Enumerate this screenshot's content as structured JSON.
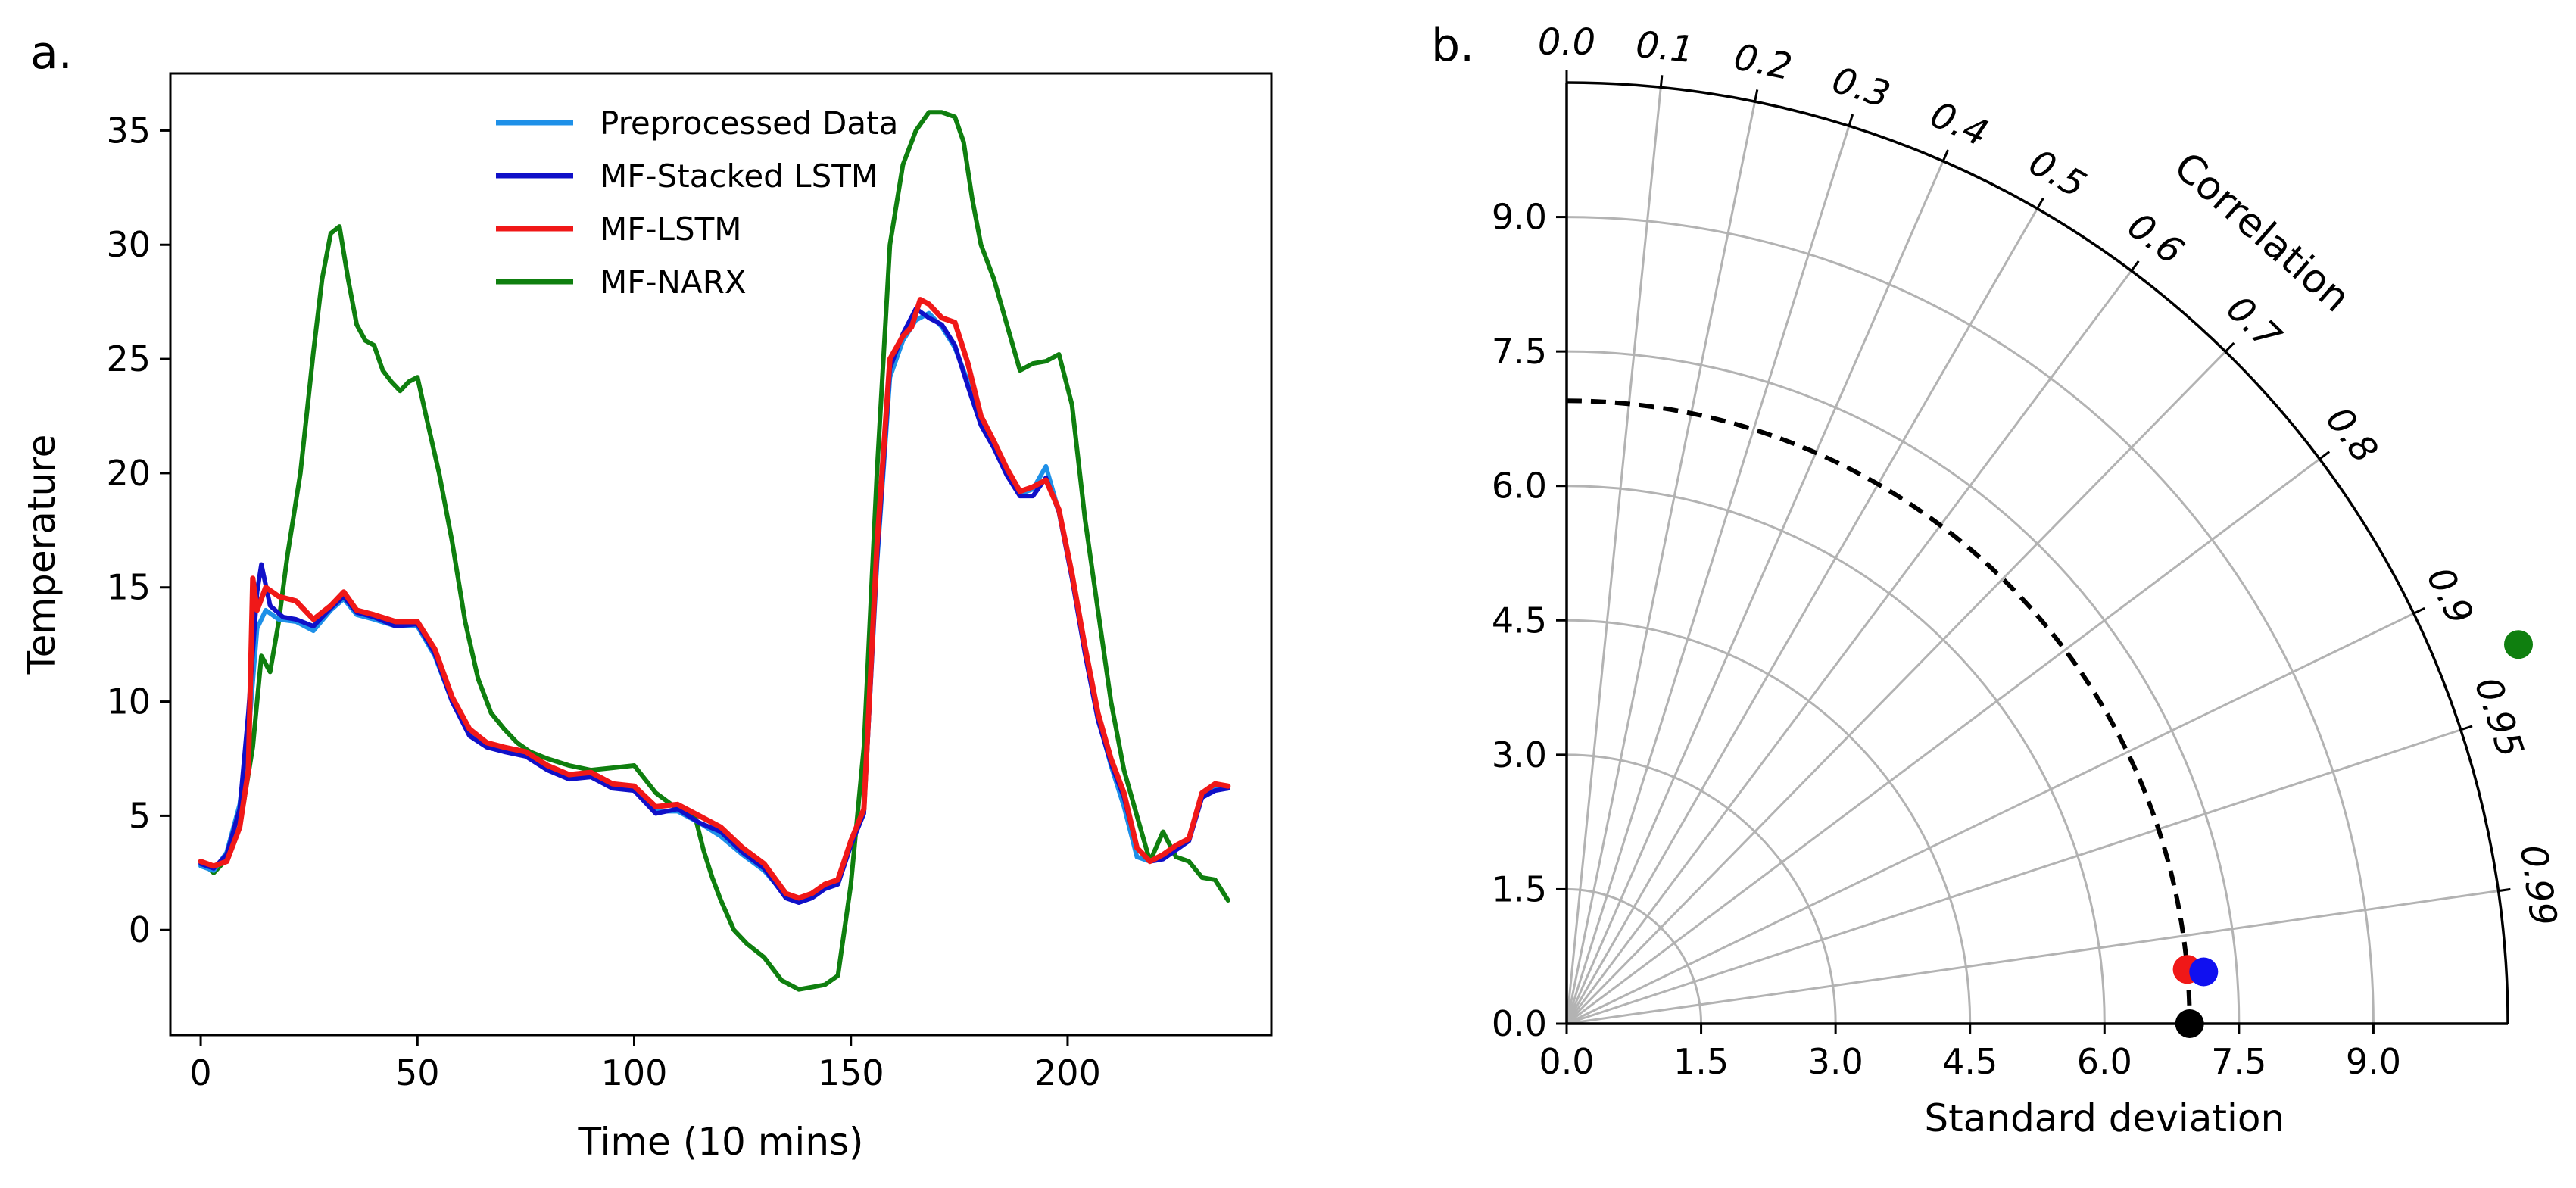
{
  "chart_data": [
    {
      "panel_label": "a.",
      "type": "line",
      "title": "",
      "xlabel": "Time (10 mins)",
      "ylabel": "Temperature",
      "xlim": [
        -7,
        247
      ],
      "ylim": [
        -4.6,
        37.5
      ],
      "xticks": [
        0,
        50,
        100,
        150,
        200
      ],
      "xtick_labels": [
        "0",
        "50",
        "100",
        "150",
        "200"
      ],
      "yticks": [
        0,
        5,
        10,
        15,
        20,
        25,
        30,
        35
      ],
      "ytick_labels": [
        "0",
        "5",
        "10",
        "15",
        "20",
        "25",
        "30",
        "35"
      ],
      "grid": false,
      "legend_position": "top-center",
      "series": [
        {
          "name": "Preprocessed Data",
          "color": "#1e90e8",
          "x": [
            0,
            3,
            6,
            9,
            11,
            13,
            15,
            18,
            22,
            26,
            30,
            33,
            36,
            40,
            45,
            50,
            54,
            58,
            62,
            66,
            70,
            75,
            80,
            85,
            90,
            95,
            100,
            105,
            110,
            115,
            120,
            125,
            130,
            135,
            138,
            141,
            144,
            147,
            150,
            153,
            156,
            159,
            162,
            165,
            168,
            171,
            174,
            177,
            180,
            183,
            186,
            189,
            192,
            195,
            198,
            201,
            204,
            207,
            210,
            213,
            216,
            219,
            222,
            225,
            228,
            231,
            234,
            237
          ],
          "values": [
            2.8,
            2.6,
            3.4,
            5.5,
            8.5,
            13.2,
            14.0,
            13.6,
            13.5,
            13.1,
            14.0,
            14.5,
            13.8,
            13.6,
            13.3,
            13.3,
            12.0,
            10.0,
            8.6,
            8.1,
            7.9,
            7.7,
            7.1,
            6.7,
            6.7,
            6.3,
            6.1,
            5.2,
            5.2,
            4.7,
            4.1,
            3.3,
            2.6,
            1.5,
            1.3,
            1.5,
            1.9,
            2.1,
            3.8,
            5.2,
            16.0,
            24.2,
            25.8,
            26.7,
            27.0,
            26.4,
            25.5,
            24.0,
            22.2,
            21.2,
            20.0,
            19.1,
            19.3,
            20.3,
            18.3,
            15.5,
            12.2,
            9.3,
            7.2,
            5.4,
            3.2,
            3.0,
            3.3,
            3.6,
            4.0,
            6.0,
            6.2,
            6.2
          ]
        },
        {
          "name": "MF-Stacked LSTM",
          "color": "#1010c8",
          "x": [
            0,
            3,
            6,
            9,
            11,
            13,
            14,
            16,
            19,
            22,
            26,
            30,
            33,
            36,
            40,
            45,
            50,
            54,
            58,
            62,
            66,
            70,
            75,
            80,
            85,
            90,
            95,
            100,
            105,
            110,
            115,
            120,
            125,
            130,
            135,
            138,
            141,
            144,
            147,
            150,
            153,
            156,
            159,
            162,
            165,
            168,
            171,
            174,
            177,
            180,
            183,
            186,
            189,
            192,
            195,
            198,
            201,
            204,
            207,
            210,
            213,
            216,
            219,
            222,
            225,
            228,
            231,
            234,
            237
          ],
          "values": [
            2.9,
            2.7,
            3.3,
            5.3,
            9.5,
            14.8,
            16.0,
            14.2,
            13.7,
            13.6,
            13.3,
            14.1,
            14.6,
            13.9,
            13.7,
            13.3,
            13.4,
            12.1,
            10.0,
            8.5,
            8.0,
            7.8,
            7.6,
            7.0,
            6.6,
            6.7,
            6.2,
            6.1,
            5.1,
            5.3,
            4.7,
            4.3,
            3.4,
            2.7,
            1.4,
            1.2,
            1.4,
            1.8,
            2.0,
            3.7,
            5.1,
            16.2,
            24.6,
            26.1,
            27.2,
            26.8,
            26.5,
            25.6,
            23.8,
            22.1,
            21.1,
            19.9,
            19.0,
            19.0,
            19.8,
            18.3,
            15.4,
            12.1,
            9.2,
            7.3,
            5.8,
            3.6,
            3.0,
            3.1,
            3.5,
            3.9,
            5.8,
            6.1,
            6.2
          ]
        },
        {
          "name": "MF-LSTM",
          "color": "#f01818",
          "x": [
            0,
            3,
            6,
            9,
            11,
            12,
            13,
            15,
            18,
            22,
            26,
            30,
            33,
            36,
            40,
            45,
            50,
            54,
            58,
            62,
            66,
            70,
            75,
            80,
            85,
            90,
            95,
            100,
            105,
            110,
            115,
            120,
            125,
            130,
            135,
            138,
            141,
            144,
            147,
            150,
            153,
            156,
            159,
            162,
            164,
            166,
            168,
            171,
            174,
            177,
            180,
            183,
            186,
            189,
            192,
            195,
            198,
            201,
            204,
            207,
            210,
            213,
            216,
            219,
            222,
            225,
            228,
            231,
            234,
            237
          ],
          "values": [
            3.0,
            2.8,
            3.0,
            4.5,
            7.0,
            15.4,
            14.0,
            15.0,
            14.6,
            14.4,
            13.6,
            14.2,
            14.8,
            14.0,
            13.8,
            13.5,
            13.5,
            12.3,
            10.2,
            8.8,
            8.2,
            8.0,
            7.8,
            7.2,
            6.8,
            6.9,
            6.4,
            6.3,
            5.4,
            5.5,
            5.0,
            4.5,
            3.6,
            2.9,
            1.6,
            1.4,
            1.6,
            2.0,
            2.2,
            3.9,
            5.3,
            16.8,
            25.0,
            26.0,
            26.4,
            27.6,
            27.4,
            26.8,
            26.6,
            24.8,
            22.5,
            21.4,
            20.2,
            19.2,
            19.4,
            19.7,
            18.4,
            15.6,
            12.4,
            9.5,
            7.5,
            6.0,
            3.6,
            3.0,
            3.3,
            3.7,
            4.0,
            6.0,
            6.4,
            6.3
          ]
        },
        {
          "name": "MF-NARX",
          "color": "#0f7f0f",
          "x": [
            0,
            3,
            6,
            9,
            12,
            14,
            16,
            18,
            20,
            23,
            26,
            28,
            30,
            32,
            34,
            36,
            38,
            40,
            42,
            44,
            46,
            48,
            50,
            52,
            55,
            58,
            61,
            64,
            67,
            70,
            73,
            76,
            80,
            85,
            90,
            95,
            100,
            105,
            110,
            114,
            116,
            118,
            120,
            123,
            126,
            130,
            134,
            138,
            141,
            144,
            147,
            150,
            153,
            156,
            159,
            162,
            165,
            168,
            171,
            174,
            176,
            178,
            180,
            183,
            186,
            189,
            192,
            195,
            198,
            201,
            204,
            207,
            210,
            213,
            216,
            219,
            222,
            225,
            228,
            231,
            234,
            237
          ],
          "values": [
            3.0,
            2.5,
            3.1,
            4.5,
            8.0,
            12.0,
            11.3,
            13.5,
            16.4,
            20.0,
            25.3,
            28.5,
            30.5,
            30.8,
            28.5,
            26.5,
            25.8,
            25.6,
            24.5,
            24.0,
            23.6,
            24.0,
            24.2,
            22.5,
            20.0,
            17.0,
            13.5,
            11.0,
            9.5,
            8.8,
            8.2,
            7.8,
            7.5,
            7.2,
            7.0,
            7.1,
            7.2,
            6.0,
            5.3,
            5.0,
            3.5,
            2.3,
            1.3,
            0.0,
            -0.6,
            -1.2,
            -2.2,
            -2.6,
            -2.5,
            -2.4,
            -2.0,
            2.0,
            8.0,
            20.0,
            30.0,
            33.5,
            35.0,
            35.8,
            35.8,
            35.6,
            34.5,
            32.0,
            30.0,
            28.5,
            26.5,
            24.5,
            24.8,
            24.9,
            25.2,
            23.0,
            18.0,
            14.0,
            10.0,
            7.0,
            5.0,
            3.0,
            4.3,
            3.2,
            3.0,
            2.3,
            2.2,
            1.3
          ]
        }
      ]
    },
    {
      "panel_label": "b.",
      "type": "scatter",
      "subtype": "taylor_diagram",
      "title": "",
      "xlabel": "Standard deviation",
      "angular_label": "Correlation",
      "radial_max": 10.5,
      "std_ticks": [
        0.0,
        1.5,
        3.0,
        4.5,
        6.0,
        7.5,
        9.0
      ],
      "std_tick_labels": [
        "0.0",
        "1.5",
        "3.0",
        "4.5",
        "6.0",
        "7.5",
        "9.0"
      ],
      "correlation_ticks": [
        0.0,
        0.1,
        0.2,
        0.3,
        0.4,
        0.5,
        0.6,
        0.7,
        0.8,
        0.9,
        0.95,
        0.99
      ],
      "correlation_tick_labels": [
        "0.0",
        "0.1",
        "0.2",
        "0.3",
        "0.4",
        "0.5",
        "0.6",
        "0.7",
        "0.8",
        "0.9",
        "0.95",
        "0.99"
      ],
      "reference_std": 6.95,
      "points": [
        {
          "name": "Preprocessed Data",
          "color": "#000000",
          "std": 6.95,
          "correlation": 1.0
        },
        {
          "name": "MF-LSTM",
          "color": "#f01818",
          "std": 6.95,
          "correlation": 0.9962
        },
        {
          "name": "MF-Stacked LSTM",
          "color": "#1010f0",
          "std": 7.13,
          "correlation": 0.9967
        },
        {
          "name": "MF-NARX",
          "color": "#0f7f0f",
          "std": 11.43,
          "correlation": 0.929
        }
      ]
    }
  ]
}
